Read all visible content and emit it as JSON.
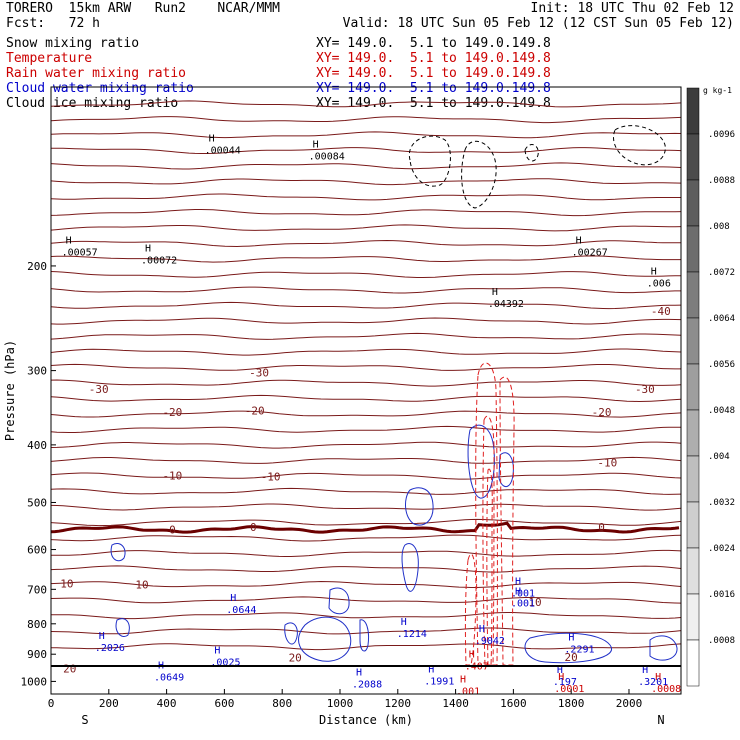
{
  "header": {
    "left_line1": "TORERO  15km ARW   Run2    NCAR/MMM",
    "left_line2": "Fcst:   72 h",
    "right_line1": "Init: 18 UTC Thu 02 Feb 12",
    "right_line2": "Valid: 18 UTC Sun 05 Feb 12 (12 CST Sun 05 Feb 12)"
  },
  "fields": [
    {
      "name": "Snow mixing ratio",
      "color": "#000000",
      "xy": "XY= 149.0.  5.1 to 149.0.149.8"
    },
    {
      "name": "Temperature",
      "color": "#cc0000",
      "xy": "XY= 149.0.  5.1 to 149.0.149.8"
    },
    {
      "name": "Rain water mixing ratio",
      "color": "#cc0000",
      "xy": "XY= 149.0.  5.1 to 149.0.149.8"
    },
    {
      "name": "Cloud water mixing ratio",
      "color": "#0000cc",
      "xy": "XY= 149.0.  5.1 to 149.0.149.8"
    },
    {
      "name": "Cloud ice mixing ratio",
      "color": "#000000",
      "xy": "XY= 149.0.  5.1 to 149.0.149.8"
    }
  ],
  "colorbar": {
    "unit": "g kg-1",
    "labels": [
      ".0096",
      ".0088",
      ".008",
      ".0072",
      ".0064",
      ".0056",
      ".0048",
      ".004",
      ".0032",
      ".0024",
      ".0016",
      ".0008"
    ]
  },
  "chart_data": {
    "type": "contour",
    "xlabel": "Distance (km)",
    "ylabel": "Pressure (hPa)",
    "xlim": [
      0,
      2180
    ],
    "xticks": [
      0,
      200,
      400,
      600,
      800,
      1000,
      1200,
      1400,
      1600,
      1800,
      2000
    ],
    "ylim": [
      1050,
      100
    ],
    "yticks": [
      200,
      300,
      400,
      500,
      600,
      700,
      800,
      900,
      1000
    ],
    "y_scale": "log",
    "x_end_labels": {
      "left": "S",
      "right": "N"
    },
    "temperature_labels": [
      {
        "x": 165,
        "p": 322,
        "text": "-30"
      },
      {
        "x": 720,
        "p": 302,
        "text": "-30"
      },
      {
        "x": 2055,
        "p": 322,
        "text": "-30"
      },
      {
        "x": 2110,
        "p": 238,
        "text": "-40"
      },
      {
        "x": 420,
        "p": 352,
        "text": "-20"
      },
      {
        "x": 705,
        "p": 350,
        "text": "-20"
      },
      {
        "x": 1905,
        "p": 352,
        "text": "-20"
      },
      {
        "x": 420,
        "p": 450,
        "text": "-10"
      },
      {
        "x": 760,
        "p": 452,
        "text": "-10"
      },
      {
        "x": 1925,
        "p": 428,
        "text": "-10"
      },
      {
        "x": 420,
        "p": 555,
        "text": "0"
      },
      {
        "x": 700,
        "p": 550,
        "text": "0"
      },
      {
        "x": 1905,
        "p": 550,
        "text": "0"
      },
      {
        "x": 55,
        "p": 685,
        "text": "10"
      },
      {
        "x": 315,
        "p": 687,
        "text": "10"
      },
      {
        "x": 1675,
        "p": 735,
        "text": "10"
      },
      {
        "x": 65,
        "p": 952,
        "text": "20"
      },
      {
        "x": 845,
        "p": 912,
        "text": "20"
      },
      {
        "x": 1800,
        "p": 910,
        "text": "20"
      }
    ],
    "maxima_labels": [
      {
        "x": 85,
        "p": 190,
        "text": ".00057",
        "color": "#000000"
      },
      {
        "x": 360,
        "p": 196,
        "text": ".00072",
        "color": "#000000"
      },
      {
        "x": 580,
        "p": 128,
        "text": ".00044",
        "color": "#000000"
      },
      {
        "x": 940,
        "p": 131,
        "text": ".00084",
        "color": "#000000"
      },
      {
        "x": 1560,
        "p": 232,
        "text": ".04392",
        "color": "#000000"
      },
      {
        "x": 1850,
        "p": 190,
        "text": ".00267",
        "color": "#000000"
      },
      {
        "x": 2110,
        "p": 214,
        "text": ".006",
        "color": "#000000"
      },
      {
        "x": 200,
        "p": 878,
        "text": ".2026",
        "color": "#0000cc"
      },
      {
        "x": 405,
        "p": 985,
        "text": ".0649",
        "color": "#0000cc"
      },
      {
        "x": 600,
        "p": 930,
        "text": ".0025",
        "color": "#0000cc"
      },
      {
        "x": 1090,
        "p": 1013,
        "text": ".2088",
        "color": "#0000cc"
      },
      {
        "x": 1340,
        "p": 1000,
        "text": ".1991",
        "color": "#0000cc"
      },
      {
        "x": 1640,
        "p": 712,
        "text": ".001",
        "color": "#0000cc"
      },
      {
        "x": 1640,
        "p": 740,
        "text": ".001",
        "color": "#0000cc"
      },
      {
        "x": 655,
        "p": 759,
        "text": ".0644",
        "color": "#0000cc"
      },
      {
        "x": 1245,
        "p": 832,
        "text": ".1214",
        "color": "#0000cc"
      },
      {
        "x": 1515,
        "p": 855,
        "text": ".9042",
        "color": "#0000cc"
      },
      {
        "x": 1825,
        "p": 883,
        "text": ".2291",
        "color": "#0000cc"
      },
      {
        "x": 1785,
        "p": 1002,
        "text": ".197",
        "color": "#0000cc"
      },
      {
        "x": 2080,
        "p": 1002,
        "text": ".3201",
        "color": "#0000cc"
      },
      {
        "x": 1480,
        "p": 943,
        "text": ".407",
        "color": "#cc0000"
      },
      {
        "x": 1450,
        "p": 1040,
        "text": ".001",
        "color": "#cc0000"
      },
      {
        "x": 1790,
        "p": 1030,
        "text": ".0001",
        "color": "#cc0000"
      },
      {
        "x": 2125,
        "p": 1030,
        "text": ".0008",
        "color": "#cc0000"
      }
    ]
  }
}
